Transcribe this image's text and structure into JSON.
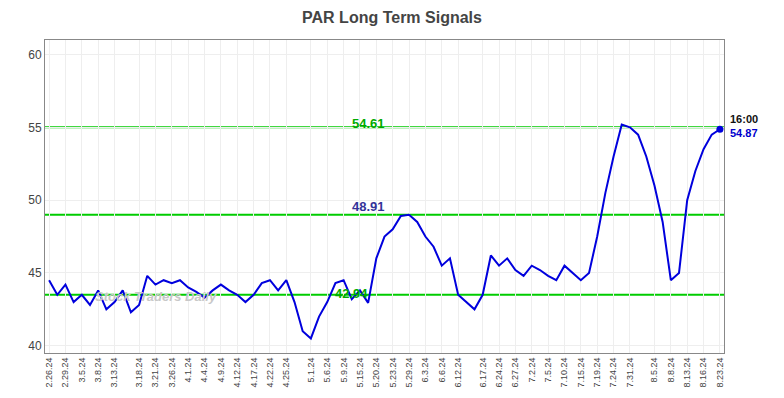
{
  "chart_data": {
    "type": "line",
    "title": "PAR Long Term Signals",
    "categories": [
      "2.26.24",
      null,
      "2.29.24",
      null,
      "3.5.24",
      null,
      "3.8.24",
      null,
      "3.13.24",
      null,
      null,
      "3.18.24",
      null,
      "3.21.24",
      null,
      "3.26.24",
      null,
      "4.1.24",
      null,
      "4.4.24",
      null,
      "4.9.24",
      null,
      "4.12.24",
      null,
      "4.17.24",
      null,
      "4.22.24",
      null,
      "4.25.24",
      null,
      null,
      "5.1.24",
      null,
      "5.6.24",
      null,
      "5.9.24",
      null,
      "5.15.24",
      null,
      "5.20.24",
      null,
      "5.23.24",
      null,
      "5.29.24",
      null,
      "6.3.24",
      null,
      "6.6.24",
      null,
      "6.12.24",
      null,
      null,
      "6.17.24",
      null,
      "6.24.24",
      null,
      "6.27.24",
      null,
      "7.2.24",
      null,
      "7.5.24",
      null,
      "7.10.24",
      null,
      "7.15.24",
      null,
      "7.19.24",
      null,
      "7.24.24",
      null,
      "7.31.24",
      null,
      null,
      "8.5.24",
      null,
      "8.8.24",
      null,
      "8.13.24",
      null,
      "8.16.24",
      null,
      "8.23.24"
    ],
    "values": [
      44.5,
      43.5,
      44.2,
      43.0,
      43.5,
      42.8,
      43.8,
      42.5,
      43.0,
      43.8,
      42.3,
      42.8,
      44.8,
      44.2,
      44.5,
      44.3,
      44.5,
      44.0,
      43.7,
      43.3,
      43.8,
      44.2,
      43.8,
      43.5,
      43.0,
      43.5,
      44.3,
      44.5,
      43.8,
      44.5,
      43.0,
      41.0,
      40.5,
      42.0,
      43.0,
      44.3,
      44.5,
      43.2,
      43.8,
      42.94,
      46.0,
      47.5,
      48.0,
      48.91,
      49.0,
      48.5,
      47.5,
      46.8,
      45.5,
      46.0,
      43.5,
      43.0,
      42.5,
      43.5,
      46.2,
      45.5,
      46.0,
      45.2,
      44.8,
      45.5,
      45.2,
      44.8,
      44.5,
      45.5,
      45.0,
      44.5,
      45.0,
      47.5,
      50.5,
      53.0,
      55.2,
      55.0,
      54.5,
      53.0,
      51.0,
      48.5,
      44.5,
      45.0,
      50.0,
      52.0,
      53.5,
      54.5,
      54.87
    ],
    "color": "#0000dd",
    "ylim": [
      39.5,
      61
    ],
    "yticks": [
      40,
      45,
      50,
      55,
      60
    ],
    "grid": true,
    "reference_lines": [
      {
        "y": 43.5,
        "color": "#00cc00"
      },
      {
        "y": 49.0,
        "color": "#00cc00"
      },
      {
        "y": 55.0,
        "color": "#00cc00"
      }
    ],
    "annotations": [
      {
        "text": "54.61",
        "x": 39,
        "y": 54.61,
        "color": "#00aa00"
      },
      {
        "text": "48.91",
        "x": 39,
        "y": 48.91,
        "color": "#333399"
      },
      {
        "text": "42.94",
        "x": 37,
        "y": 42.94,
        "color": "#00aa00"
      },
      {
        "text": "16:00",
        "x": 82,
        "y": 55.6,
        "color": "#111111"
      },
      {
        "text": "54.87",
        "x": 82,
        "y": 54.6,
        "color": "#0000cc"
      }
    ],
    "watermark": {
      "text": "Stock Traders Daily",
      "color": "#c8c8c8"
    }
  }
}
